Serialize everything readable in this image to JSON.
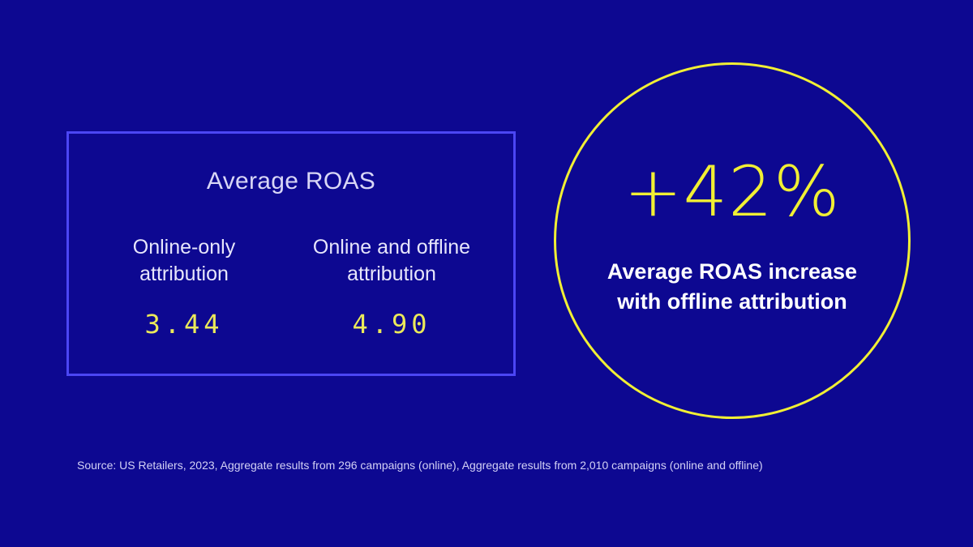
{
  "roas_box": {
    "title": "Average ROAS",
    "columns": [
      {
        "label": "Online-only attribution",
        "value": "3.44"
      },
      {
        "label": "Online and offline attribution",
        "value": "4.90"
      }
    ]
  },
  "highlight": {
    "percent": "+42%",
    "description": "Average ROAS increase with offline attribution"
  },
  "source": "Source: US Retailers, 2023, Aggregate results from 296 campaigns (online), Aggregate results from 2,010 campaigns (online and offline)",
  "colors": {
    "background": "#0d0891",
    "box_border": "#4b46f4",
    "accent_yellow": "#f1ef34",
    "value_yellow": "#ebe95a",
    "text_white": "#ffffff"
  }
}
